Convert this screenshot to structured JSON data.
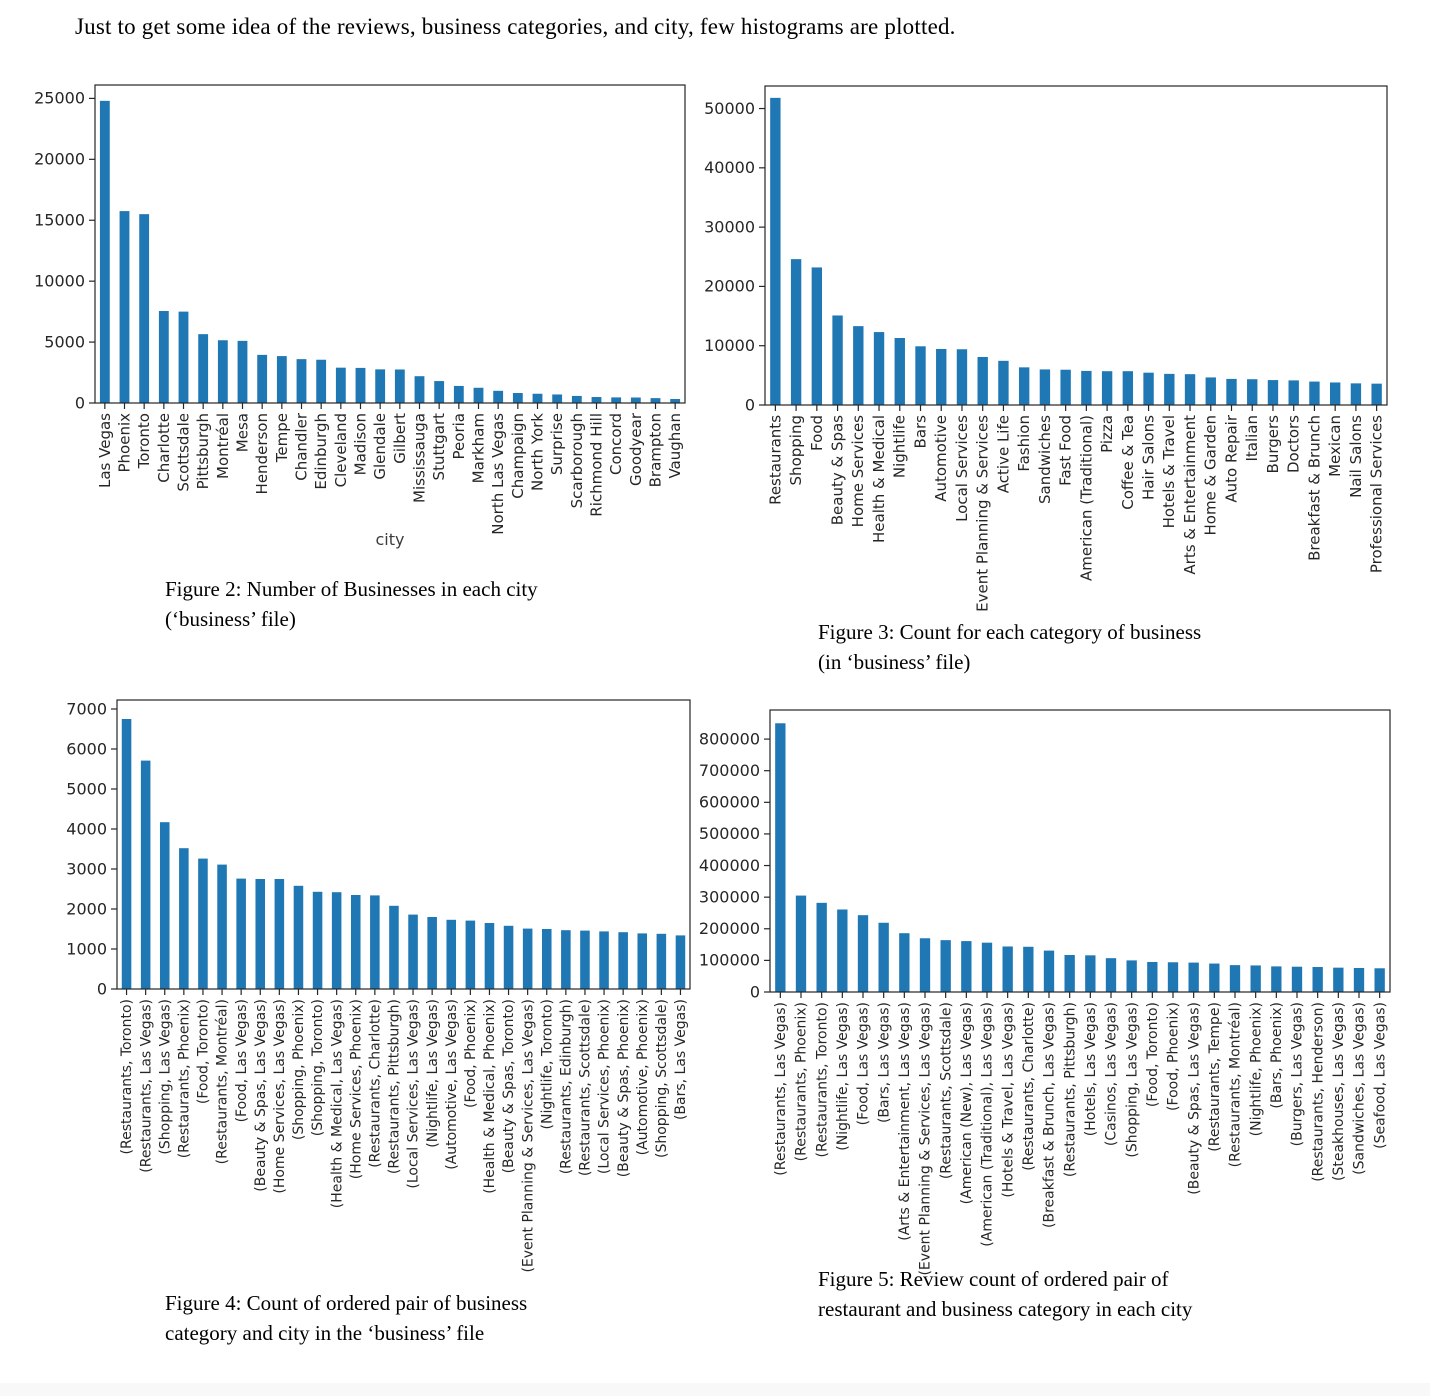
{
  "page": {
    "intro_text": "Just to get some idea of the reviews, business categories, and city, few histograms are plotted."
  },
  "figures": {
    "fig2": {
      "caption": "Figure 2: Number of Businesses in each city\n(‘business’ file)"
    },
    "fig3": {
      "caption": "Figure 3: Count for each category of business\n(in ‘business’ file)"
    },
    "fig4": {
      "caption": "Figure 4: Count of ordered pair of business\ncategory and city in the ‘business’ file"
    },
    "fig5": {
      "caption": "Figure 5: Review count of ordered pair of\nrestaurant and business category in each city"
    }
  },
  "chart_data": [
    {
      "id": "fig2",
      "type": "bar",
      "title": "",
      "xlabel": "city",
      "ylabel": "",
      "grid": false,
      "legend": "none",
      "bar_color": "#1f77b4",
      "ylim": [
        0,
        26100
      ],
      "yticks": [
        0,
        5000,
        10000,
        15000,
        20000,
        25000
      ],
      "categories": [
        "Las Vegas",
        "Phoenix",
        "Toronto",
        "Charlotte",
        "Scottsdale",
        "Pittsburgh",
        "Montréal",
        "Mesa",
        "Henderson",
        "Tempe",
        "Chandler",
        "Edinburgh",
        "Cleveland",
        "Madison",
        "Glendale",
        "Gilbert",
        "Mississauga",
        "Stuttgart",
        "Peoria",
        "Markham",
        "North Las Vegas",
        "Champaign",
        "North York",
        "Surprise",
        "Scarborough",
        "Richmond Hill",
        "Concord",
        "Goodyear",
        "Brampton",
        "Vaughan"
      ],
      "values": [
        24800,
        15750,
        15500,
        7550,
        7500,
        5650,
        5150,
        5100,
        3950,
        3850,
        3600,
        3550,
        2900,
        2880,
        2760,
        2750,
        2200,
        1800,
        1400,
        1250,
        1000,
        820,
        760,
        700,
        580,
        490,
        460,
        450,
        400,
        330
      ]
    },
    {
      "id": "fig3",
      "type": "bar",
      "title": "",
      "xlabel": "",
      "ylabel": "",
      "grid": false,
      "legend": "none",
      "bar_color": "#1f77b4",
      "ylim": [
        0,
        53800
      ],
      "yticks": [
        0,
        10000,
        20000,
        30000,
        40000,
        50000
      ],
      "categories": [
        "Restaurants",
        "Shopping",
        "Food",
        "Beauty & Spas",
        "Home Services",
        "Health & Medical",
        "Nightlife",
        "Bars",
        "Automotive",
        "Local Services",
        "Event Planning & Services",
        "Active Life",
        "Fashion",
        "Sandwiches",
        "Fast Food",
        "American (Traditional)",
        "Pizza",
        "Coffee & Tea",
        "Hair Salons",
        "Hotels & Travel",
        "Arts & Entertainment",
        "Home & Garden",
        "Auto Repair",
        "Italian",
        "Burgers",
        "Doctors",
        "Breakfast & Brunch",
        "Mexican",
        "Nail Salons",
        "Professional Services"
      ],
      "values": [
        51800,
        24600,
        23200,
        15100,
        13300,
        12300,
        11300,
        9900,
        9450,
        9400,
        8100,
        7450,
        6350,
        6000,
        5950,
        5750,
        5700,
        5700,
        5450,
        5250,
        5200,
        4650,
        4400,
        4350,
        4200,
        4150,
        3950,
        3800,
        3650,
        3600
      ]
    },
    {
      "id": "fig4",
      "type": "bar",
      "title": "",
      "xlabel": "",
      "ylabel": "",
      "grid": false,
      "legend": "none",
      "bar_color": "#1f77b4",
      "ylim": [
        0,
        7225
      ],
      "yticks": [
        0,
        1000,
        2000,
        3000,
        4000,
        5000,
        6000,
        7000
      ],
      "categories": [
        "(Restaurants, Toronto)",
        "(Restaurants, Las Vegas)",
        "(Shopping, Las Vegas)",
        "(Restaurants, Phoenix)",
        "(Food, Toronto)",
        "(Restaurants, Montréal)",
        "(Food, Las Vegas)",
        "(Beauty & Spas, Las Vegas)",
        "(Home Services, Las Vegas)",
        "(Shopping, Phoenix)",
        "(Shopping, Toronto)",
        "(Health & Medical, Las Vegas)",
        "(Home Services, Phoenix)",
        "(Restaurants, Charlotte)",
        "(Restaurants, Pittsburgh)",
        "(Local Services, Las Vegas)",
        "(Nightlife, Las Vegas)",
        "(Automotive, Las Vegas)",
        "(Food, Phoenix)",
        "(Health & Medical, Phoenix)",
        "(Beauty & Spas, Toronto)",
        "(Event Planning & Services, Las Vegas)",
        "(Nightlife, Toronto)",
        "(Restaurants, Edinburgh)",
        "(Restaurants, Scottsdale)",
        "(Local Services, Phoenix)",
        "(Beauty & Spas, Phoenix)",
        "(Automotive, Phoenix)",
        "(Shopping, Scottsdale)",
        "(Bars, Las Vegas)"
      ],
      "values": [
        6750,
        5710,
        4170,
        3520,
        3260,
        3110,
        2760,
        2750,
        2750,
        2580,
        2430,
        2420,
        2350,
        2340,
        2080,
        1860,
        1800,
        1730,
        1710,
        1650,
        1580,
        1510,
        1500,
        1470,
        1460,
        1440,
        1420,
        1390,
        1380,
        1340
      ]
    },
    {
      "id": "fig5",
      "type": "bar",
      "title": "",
      "xlabel": "",
      "ylabel": "",
      "grid": false,
      "legend": "none",
      "bar_color": "#1f77b4",
      "ylim": [
        0,
        892000
      ],
      "yticks": [
        0,
        100000,
        200000,
        300000,
        400000,
        500000,
        600000,
        700000,
        800000
      ],
      "categories": [
        "(Restaurants, Las Vegas)",
        "(Restaurants, Phoenix)",
        "(Restaurants, Toronto)",
        "(Nightlife, Las Vegas)",
        "(Food, Las Vegas)",
        "(Bars, Las Vegas)",
        "(Arts & Entertainment, Las Vegas)",
        "(Event Planning & Services, Las Vegas)",
        "(Restaurants, Scottsdale)",
        "(American (New), Las Vegas)",
        "(American (Traditional), Las Vegas)",
        "(Hotels & Travel, Las Vegas)",
        "(Restaurants, Charlotte)",
        "(Breakfast & Brunch, Las Vegas)",
        "(Restaurants, Pittsburgh)",
        "(Hotels, Las Vegas)",
        "(Casinos, Las Vegas)",
        "(Shopping, Las Vegas)",
        "(Food, Toronto)",
        "(Food, Phoenix)",
        "(Beauty & Spas, Las Vegas)",
        "(Restaurants, Tempe)",
        "(Restaurants, Montréal)",
        "(Nightlife, Phoenix)",
        "(Bars, Phoenix)",
        "(Burgers, Las Vegas)",
        "(Restaurants, Henderson)",
        "(Steakhouses, Las Vegas)",
        "(Sandwiches, Las Vegas)",
        "(Seafood, Las Vegas)"
      ],
      "values": [
        850000,
        305000,
        282000,
        261000,
        243000,
        219000,
        186000,
        170000,
        164000,
        161000,
        156000,
        144000,
        143000,
        131000,
        117000,
        116000,
        107000,
        100000,
        95000,
        94000,
        93000,
        90000,
        85000,
        84000,
        81000,
        80000,
        79000,
        77000,
        76000,
        75000
      ]
    }
  ]
}
